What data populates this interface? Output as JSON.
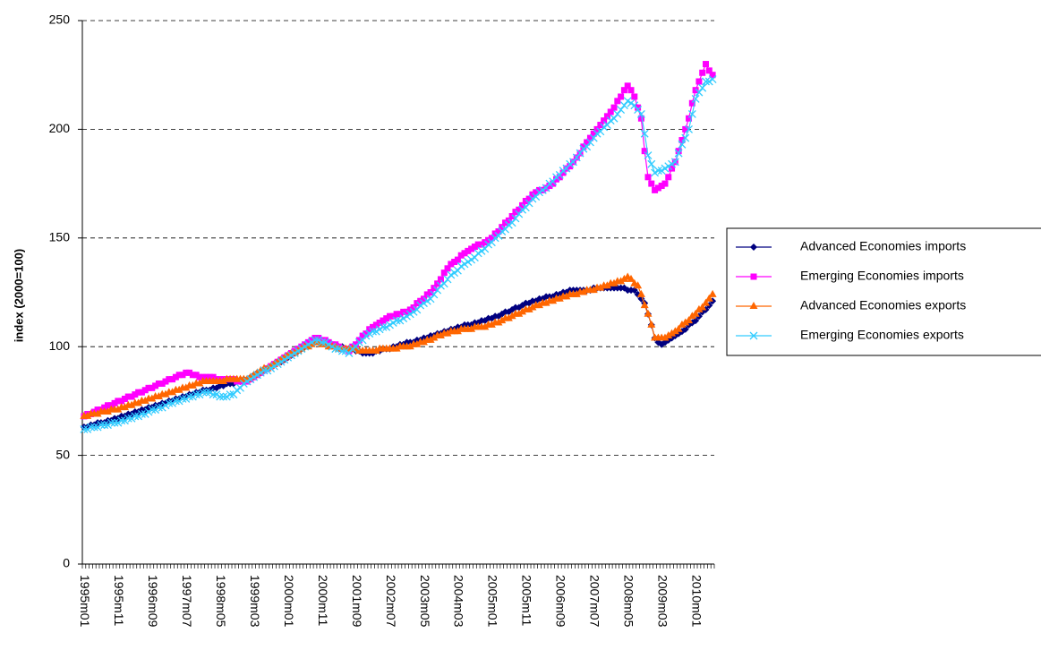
{
  "chart_data": {
    "type": "line",
    "y_label": "index (2000=100)",
    "ylim": [
      0,
      250
    ],
    "yticks": [
      0,
      50,
      100,
      150,
      200,
      250
    ],
    "grid": true,
    "legend": "right",
    "categories": [
      "1995m01",
      null,
      null,
      null,
      null,
      null,
      null,
      null,
      null,
      null,
      "1995m11",
      null,
      null,
      null,
      null,
      null,
      null,
      null,
      null,
      null,
      "1996m09",
      null,
      null,
      null,
      null,
      null,
      null,
      null,
      null,
      null,
      "1997m07",
      null,
      null,
      null,
      null,
      null,
      null,
      null,
      null,
      null,
      "1998m05",
      null,
      null,
      null,
      null,
      null,
      null,
      null,
      null,
      null,
      "1999m03",
      null,
      null,
      null,
      null,
      null,
      null,
      null,
      null,
      null,
      "2000m01",
      null,
      null,
      null,
      null,
      null,
      null,
      null,
      null,
      null,
      "2000m11",
      null,
      null,
      null,
      null,
      null,
      null,
      null,
      null,
      null,
      "2001m09",
      null,
      null,
      null,
      null,
      null,
      null,
      null,
      null,
      null,
      "2002m07",
      null,
      null,
      null,
      null,
      null,
      null,
      null,
      null,
      null,
      "2003m05",
      null,
      null,
      null,
      null,
      null,
      null,
      null,
      null,
      null,
      "2004m03",
      null,
      null,
      null,
      null,
      null,
      null,
      null,
      null,
      null,
      "2005m01",
      null,
      null,
      null,
      null,
      null,
      null,
      null,
      null,
      null,
      "2005m11",
      null,
      null,
      null,
      null,
      null,
      null,
      null,
      null,
      null,
      "2006m09",
      null,
      null,
      null,
      null,
      null,
      null,
      null,
      null,
      null,
      "2007m07",
      null,
      null,
      null,
      null,
      null,
      null,
      null,
      null,
      null,
      "2008m05",
      null,
      null,
      null,
      null,
      null,
      null,
      null,
      null,
      null,
      "2009m03",
      null,
      null,
      null,
      null,
      null,
      null,
      null,
      null,
      null,
      "2010m01",
      null,
      null,
      null,
      null,
      null
    ],
    "series": [
      {
        "name": "Advanced Economies imports",
        "color": "#000080",
        "marker": "diamond",
        "values": [
          63,
          63,
          64,
          64,
          65,
          65,
          65,
          66,
          66,
          67,
          67,
          68,
          68,
          69,
          69,
          70,
          70,
          71,
          71,
          72,
          72,
          73,
          73,
          74,
          74,
          75,
          75,
          76,
          76,
          77,
          77,
          78,
          78,
          79,
          79,
          80,
          80,
          80,
          81,
          81,
          82,
          82,
          83,
          83,
          83,
          84,
          84,
          85,
          85,
          86,
          87,
          88,
          88,
          89,
          90,
          91,
          92,
          93,
          93,
          94,
          95,
          96,
          97,
          98,
          99,
          100,
          101,
          102,
          103,
          103,
          102,
          102,
          101,
          101,
          100,
          100,
          100,
          99,
          99,
          99,
          98,
          98,
          97,
          97,
          97,
          97,
          98,
          98,
          99,
          99,
          99,
          100,
          100,
          101,
          101,
          102,
          102,
          102,
          103,
          103,
          104,
          104,
          105,
          105,
          106,
          106,
          107,
          107,
          108,
          108,
          109,
          109,
          110,
          110,
          110,
          111,
          111,
          112,
          112,
          113,
          113,
          114,
          114,
          115,
          116,
          116,
          117,
          118,
          118,
          119,
          120,
          120,
          121,
          121,
          122,
          122,
          123,
          123,
          123,
          124,
          124,
          125,
          125,
          126,
          126,
          126,
          126,
          126,
          126,
          126,
          127,
          127,
          127,
          127,
          127,
          127,
          127,
          127,
          127,
          127,
          126,
          126,
          126,
          124,
          122,
          120,
          115,
          110,
          104,
          102,
          101,
          102,
          103,
          104,
          105,
          106,
          107,
          108,
          110,
          111,
          112,
          114,
          116,
          117,
          119,
          121
        ]
      },
      {
        "name": "Emerging Economies imports",
        "color": "#FF00FF",
        "marker": "square",
        "values": [
          68,
          69,
          69,
          70,
          71,
          71,
          72,
          73,
          73,
          74,
          75,
          75,
          76,
          77,
          77,
          78,
          79,
          79,
          80,
          81,
          81,
          82,
          83,
          83,
          84,
          85,
          85,
          86,
          87,
          87,
          88,
          88,
          87,
          87,
          86,
          86,
          86,
          86,
          86,
          85,
          85,
          85,
          85,
          85,
          85,
          84,
          84,
          84,
          84,
          85,
          86,
          87,
          88,
          89,
          90,
          91,
          92,
          93,
          94,
          95,
          96,
          97,
          98,
          99,
          100,
          101,
          102,
          103,
          104,
          104,
          103,
          103,
          102,
          101,
          101,
          100,
          99,
          99,
          98,
          100,
          101,
          103,
          105,
          106,
          108,
          109,
          110,
          111,
          112,
          113,
          114,
          114,
          115,
          115,
          116,
          116,
          117,
          118,
          120,
          121,
          122,
          124,
          125,
          127,
          129,
          131,
          134,
          136,
          138,
          139,
          140,
          142,
          143,
          144,
          145,
          146,
          147,
          147,
          148,
          149,
          150,
          152,
          153,
          155,
          157,
          158,
          160,
          162,
          163,
          165,
          167,
          168,
          170,
          171,
          172,
          172,
          173,
          174,
          175,
          177,
          178,
          180,
          182,
          183,
          185,
          187,
          189,
          192,
          194,
          196,
          198,
          200,
          202,
          204,
          206,
          208,
          210,
          213,
          215,
          218,
          220,
          218,
          215,
          210,
          205,
          190,
          178,
          175,
          172,
          173,
          174,
          175,
          178,
          182,
          185,
          190,
          195,
          200,
          205,
          212,
          218,
          222,
          226,
          230,
          227,
          225
        ]
      },
      {
        "name": "Advanced Economies exports",
        "color": "#FF6600",
        "marker": "triangle",
        "values": [
          68,
          68,
          69,
          69,
          69,
          70,
          70,
          70,
          71,
          71,
          71,
          72,
          72,
          73,
          73,
          74,
          74,
          75,
          75,
          76,
          76,
          77,
          77,
          78,
          78,
          79,
          79,
          80,
          80,
          81,
          81,
          82,
          82,
          83,
          83,
          84,
          84,
          84,
          84,
          84,
          84,
          84,
          85,
          85,
          85,
          85,
          85,
          85,
          85,
          86,
          87,
          88,
          89,
          90,
          90,
          91,
          92,
          93,
          94,
          95,
          96,
          97,
          97,
          98,
          99,
          100,
          100,
          101,
          102,
          102,
          101,
          101,
          100,
          100,
          100,
          99,
          99,
          99,
          99,
          99,
          99,
          98,
          98,
          98,
          98,
          98,
          98,
          99,
          99,
          99,
          99,
          99,
          99,
          100,
          100,
          100,
          100,
          101,
          101,
          102,
          102,
          103,
          103,
          104,
          105,
          105,
          106,
          106,
          107,
          107,
          107,
          108,
          108,
          108,
          108,
          109,
          109,
          109,
          109,
          110,
          110,
          111,
          111,
          112,
          113,
          113,
          114,
          115,
          115,
          116,
          117,
          117,
          118,
          119,
          119,
          120,
          120,
          121,
          121,
          122,
          122,
          123,
          123,
          124,
          124,
          124,
          125,
          125,
          126,
          126,
          126,
          127,
          127,
          128,
          128,
          129,
          129,
          130,
          130,
          131,
          132,
          131,
          129,
          128,
          124,
          119,
          115,
          110,
          104,
          104,
          104,
          104,
          105,
          106,
          107,
          108,
          110,
          111,
          112,
          114,
          115,
          117,
          118,
          120,
          122,
          124
        ]
      },
      {
        "name": "Emerging Economies exports",
        "color": "#33CCFF",
        "marker": "x",
        "values": [
          62,
          62,
          63,
          63,
          63,
          64,
          64,
          64,
          65,
          65,
          65,
          66,
          66,
          67,
          67,
          68,
          68,
          69,
          69,
          70,
          71,
          71,
          72,
          72,
          73,
          74,
          74,
          75,
          75,
          76,
          76,
          77,
          77,
          78,
          78,
          79,
          79,
          79,
          78,
          78,
          77,
          77,
          77,
          78,
          78,
          80,
          81,
          83,
          84,
          85,
          86,
          87,
          88,
          89,
          89,
          90,
          91,
          92,
          93,
          94,
          95,
          96,
          97,
          98,
          99,
          100,
          101,
          102,
          103,
          103,
          102,
          102,
          101,
          100,
          99,
          99,
          98,
          98,
          97,
          99,
          100,
          102,
          103,
          105,
          106,
          107,
          107,
          108,
          109,
          109,
          110,
          111,
          112,
          112,
          113,
          114,
          115,
          116,
          117,
          119,
          120,
          121,
          122,
          124,
          126,
          128,
          129,
          131,
          133,
          134,
          135,
          137,
          138,
          139,
          140,
          141,
          143,
          144,
          145,
          147,
          148,
          150,
          151,
          153,
          154,
          156,
          157,
          159,
          161,
          163,
          164,
          166,
          168,
          169,
          171,
          172,
          173,
          175,
          176,
          178,
          179,
          181,
          182,
          184,
          185,
          187,
          189,
          191,
          192,
          194,
          196,
          198,
          199,
          201,
          202,
          204,
          205,
          207,
          209,
          211,
          213,
          212,
          211,
          209,
          207,
          198,
          188,
          184,
          180,
          181,
          181,
          182,
          183,
          184,
          185,
          189,
          193,
          196,
          200,
          207,
          214,
          217,
          219,
          222,
          222,
          223
        ]
      }
    ]
  }
}
